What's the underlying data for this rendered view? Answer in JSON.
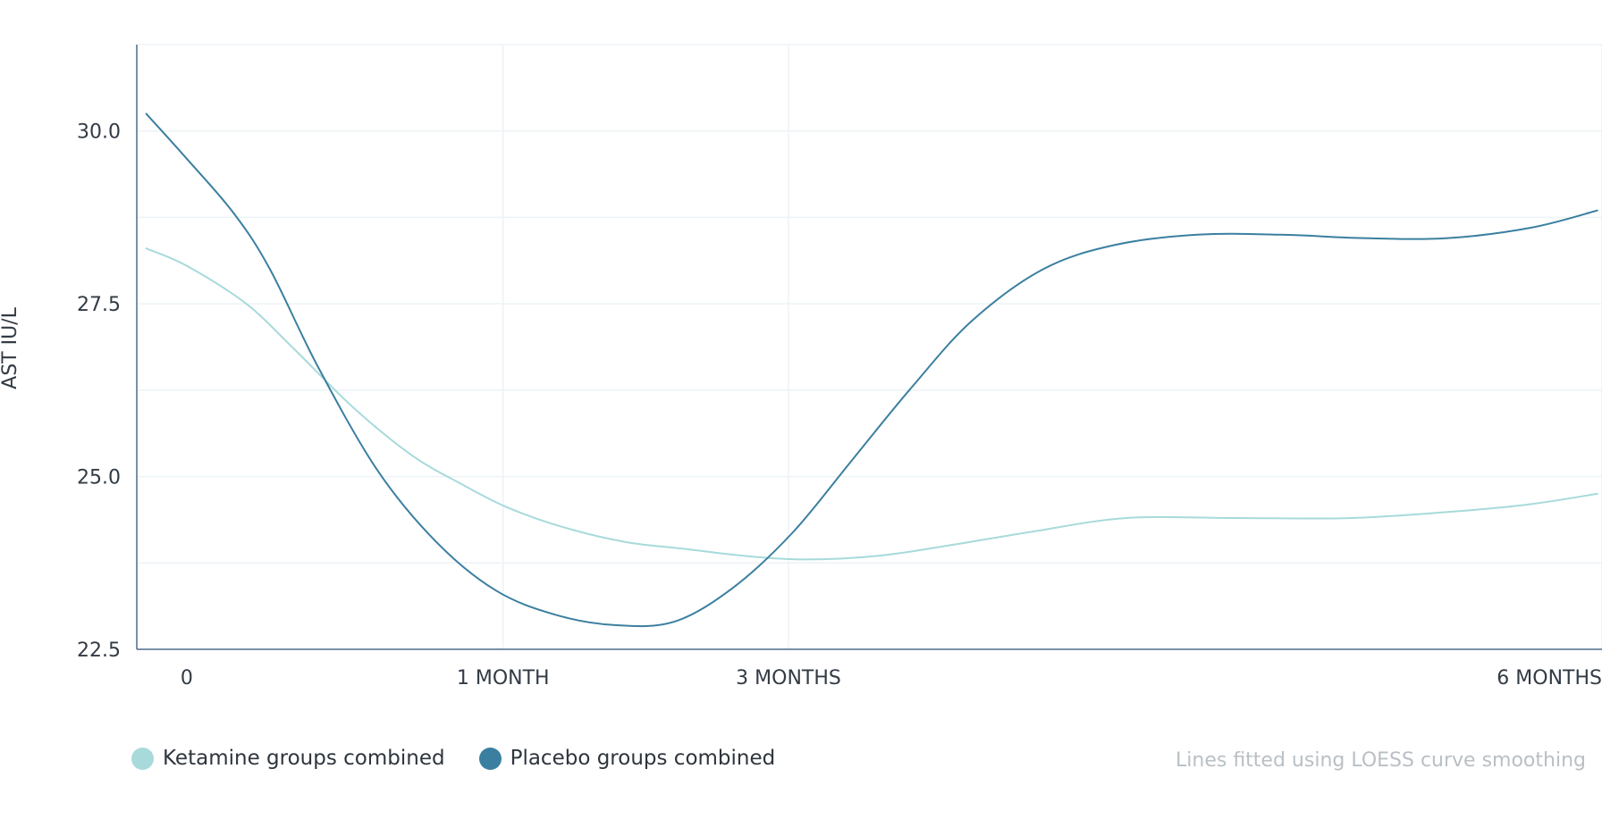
{
  "chart_data": {
    "type": "line",
    "ylabel": "AST IU/L",
    "xlabel": "",
    "ylim": [
      22.5,
      31.25
    ],
    "yticks": [
      22.5,
      25.0,
      27.5,
      30.0
    ],
    "ytick_labels": [
      "22.5",
      "25.0",
      "27.5",
      "30.0"
    ],
    "y_minor_gridlines": [
      23.75,
      26.25,
      28.75,
      31.25
    ],
    "xlim": [
      -0.21,
      5.95
    ],
    "xticks": [
      0,
      1.33,
      2.53,
      5.95
    ],
    "xtick_labels": [
      "0",
      "1 MONTH",
      "3 MONTHS",
      "6 MONTHS"
    ],
    "grid": true,
    "legend_position": "bottom-left",
    "series": [
      {
        "name": "Ketamine groups combined",
        "color": "#a8dadb",
        "x": [
          -0.17,
          0.0,
          0.25,
          0.45,
          0.7,
          0.95,
          1.15,
          1.35,
          1.6,
          1.85,
          2.1,
          2.35,
          2.6,
          2.9,
          3.2,
          3.55,
          3.95,
          4.4,
          4.9,
          5.35,
          5.65,
          5.93
        ],
        "y": [
          28.3,
          28.05,
          27.5,
          26.85,
          26.0,
          25.3,
          24.9,
          24.55,
          24.25,
          24.05,
          23.95,
          23.85,
          23.8,
          23.85,
          24.0,
          24.2,
          24.4,
          24.4,
          24.4,
          24.5,
          24.6,
          24.75
        ]
      },
      {
        "name": "Placebo groups combined",
        "color": "#3b7fa0",
        "x": [
          -0.17,
          0.0,
          0.2,
          0.35,
          0.55,
          0.8,
          1.05,
          1.3,
          1.55,
          1.8,
          2.05,
          2.3,
          2.55,
          2.8,
          3.05,
          3.3,
          3.6,
          3.9,
          4.25,
          4.6,
          4.95,
          5.3,
          5.65,
          5.93
        ],
        "y": [
          30.25,
          29.6,
          28.8,
          28.0,
          26.6,
          25.1,
          24.05,
          23.35,
          23.0,
          22.85,
          22.9,
          23.4,
          24.2,
          25.25,
          26.3,
          27.25,
          28.0,
          28.35,
          28.5,
          28.5,
          28.45,
          28.45,
          28.6,
          28.85
        ]
      }
    ],
    "annotation": "Lines fitted using LOESS curve smoothing"
  },
  "colors": {
    "axis": "#4f6b8a",
    "grid": "#edf3f6",
    "ketamine": "#a8dadb",
    "placebo": "#3b7fa0"
  }
}
